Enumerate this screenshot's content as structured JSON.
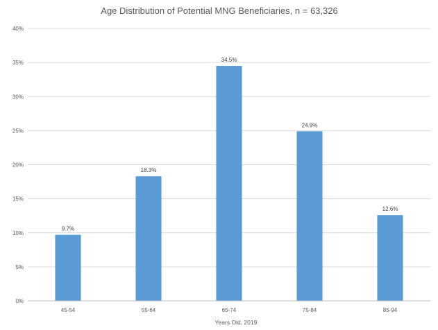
{
  "chart_data": {
    "type": "bar",
    "title": "Age Distribution of Potential MNG Beneficiaries, n = 63,326",
    "xlabel": "Years Old, 2019",
    "ylabel": "",
    "categories": [
      "45-54",
      "55-64",
      "65-74",
      "75-84",
      "85-94"
    ],
    "values": [
      9.7,
      18.3,
      34.5,
      24.9,
      12.6
    ],
    "data_labels": [
      "9.7%",
      "18.3%",
      "34.5%",
      "24.9%",
      "12.6%"
    ],
    "ylim": [
      0,
      40
    ],
    "yticks": [
      0,
      5,
      10,
      15,
      20,
      25,
      30,
      35,
      40
    ],
    "ytick_labels": [
      "0%",
      "5%",
      "10%",
      "15%",
      "20%",
      "25%",
      "30%",
      "35%",
      "40%"
    ],
    "grid": true,
    "legend": "none",
    "colors": {
      "bar": "#5b9bd5",
      "grid": "#d9d9d9",
      "axis": "#bfbfbf",
      "text": "#595959"
    }
  }
}
